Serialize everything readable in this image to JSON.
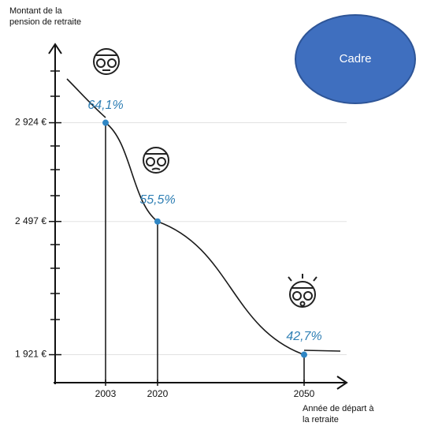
{
  "chart_data": {
    "type": "line",
    "y_label": [
      "Montant de la",
      "pension de retraite"
    ],
    "x_label": [
      "Année de départ à",
      "la retraite"
    ],
    "badge": "Cadre",
    "categories": [
      "2003",
      "2020",
      "2050"
    ],
    "values": [
      2924,
      2497,
      1921
    ],
    "annotations": [
      "64,1%",
      "55,5%",
      "42,7%"
    ],
    "color": "#1a1a1a",
    "marker_color": "#2f86c4",
    "ylim": [
      1800,
      3250
    ],
    "yticks": [
      {
        "value": 1921,
        "label": "1 921 €"
      },
      {
        "value": 2497,
        "label": "2 497 €"
      },
      {
        "value": 2924,
        "label": "2 924 €"
      }
    ],
    "grid": true
  }
}
